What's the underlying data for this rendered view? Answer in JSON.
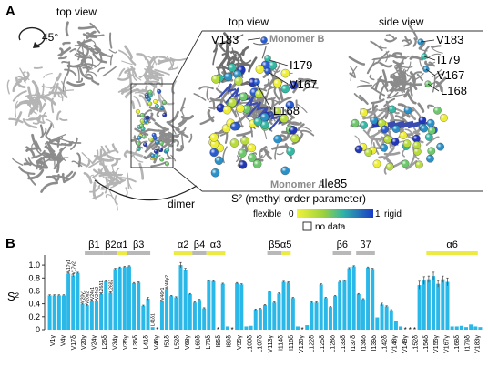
{
  "panel_a": {
    "letter": "A",
    "left_title": "top view",
    "rotation": "45°",
    "dimer_label": "dimer",
    "zoom_top_title": "top view",
    "zoom_side_title": "side view",
    "monomer_b": "Monomer B",
    "monomer_a": "Monomer A",
    "ile_label": "Ile85",
    "top_residues": [
      "V183",
      "I179",
      "V167",
      "L168"
    ],
    "side_residues": [
      "V183",
      "I179",
      "V167",
      "L168"
    ],
    "legend_title": "S² (methyl order parameter)",
    "legend_flexible": "flexible",
    "legend_zero": "0",
    "legend_one": "1",
    "legend_rigid": "rigid",
    "legend_nodata": "no data",
    "colors": {
      "ribbon": "#9a9a9a",
      "low": "#e8e830",
      "mid": "#40b8a0",
      "high": "#2040c0"
    }
  },
  "chart_data": {
    "type": "bar",
    "letter": "B",
    "ylabel": "S²",
    "ylim": [
      0,
      1.1
    ],
    "yticks": [
      "0",
      "0.2",
      "0.4",
      "0.6",
      "0.8",
      "1.0"
    ],
    "bar_color": "#2ab8e8",
    "nodata_marker": "*",
    "secondary_structure": [
      {
        "label": "β1",
        "kind": "beta",
        "from": 8,
        "to": 11
      },
      {
        "label": "β2",
        "kind": "beta",
        "from": 12,
        "to": 14
      },
      {
        "label": "α1",
        "kind": "alpha",
        "from": 15,
        "to": 16
      },
      {
        "label": "β3",
        "kind": "beta",
        "from": 17,
        "to": 21
      },
      {
        "label": "α2",
        "kind": "alpha",
        "from": 27,
        "to": 30
      },
      {
        "label": "β4",
        "kind": "beta",
        "from": 31,
        "to": 33
      },
      {
        "label": "α3",
        "kind": "alpha",
        "from": 34,
        "to": 37
      },
      {
        "label": "β5",
        "kind": "beta",
        "from": 47,
        "to": 49
      },
      {
        "label": "α5",
        "kind": "alpha",
        "from": 50,
        "to": 51
      },
      {
        "label": "β6",
        "kind": "beta",
        "from": 61,
        "to": 64
      },
      {
        "label": "β7",
        "kind": "beta",
        "from": 66,
        "to": 69
      },
      {
        "label": "α6",
        "kind": "alpha",
        "from": 81,
        "to": 91
      }
    ],
    "categories": [
      "V1γ",
      "V4γ",
      "V17δ",
      "V20γ",
      "V24γ",
      "L26δ",
      "V34γ",
      "V35γ",
      "L36δ",
      "L41δ",
      "V46γ",
      "I51δ",
      "L52δ",
      "V68γ",
      "L69δ",
      "L78δ",
      "I85δ",
      "I89δ",
      "V95γ",
      "L100δ",
      "L107δ",
      "V113γ",
      "I114δ",
      "I116δ",
      "V120γ",
      "L122δ",
      "L125δ",
      "L128δ",
      "L133δ",
      "I137δ",
      "I134δ",
      "I139δ",
      "L142δ",
      "V148γ",
      "V149γ",
      "L152δ",
      "L154δ",
      "V155γ",
      "V167γ",
      "L168δ",
      "I179δ",
      "V183γ"
    ],
    "bars": [
      {
        "v": 0.53,
        "e": 0.01
      },
      {
        "v": 0.53,
        "e": 0.01
      },
      {
        "v": 0.53,
        "e": 0.01
      },
      {
        "v": 0.53,
        "e": 0.01
      },
      {
        "v": 0.87,
        "e": 0.01,
        "label": "V17γ1"
      },
      {
        "v": 0.84,
        "e": 0.02,
        "label": "V17γ2"
      },
      {
        "v": 0.88,
        "e": 0.01
      },
      {
        "v": 0.4,
        "e": 0.01,
        "label": "V20γ1"
      },
      {
        "v": 0.38,
        "e": 0.01,
        "label": "V20γ2"
      },
      {
        "v": 0.45,
        "e": 0.01,
        "label": "V24γ1"
      },
      {
        "v": 0.45,
        "e": 0.01,
        "label": "V24γ2"
      },
      {
        "v": 0.55,
        "e": 0.01,
        "label": "L26δ1"
      },
      {
        "v": 0.75,
        "e": 0.01
      },
      {
        "v": 0.57,
        "e": 0.01,
        "label": "L26δ2"
      },
      {
        "v": 0.94,
        "e": 0.01
      },
      {
        "v": 0.96,
        "e": 0.01
      },
      {
        "v": 0.97,
        "e": 0.01
      },
      {
        "v": 0.98,
        "e": 0.01
      },
      {
        "v": 0.72,
        "e": 0.01
      },
      {
        "v": 0.73,
        "e": 0.01
      },
      {
        "v": 0.37,
        "e": 0.01
      },
      {
        "v": 0.48,
        "e": 0.02
      },
      {
        "v": 0.04,
        "e": 0.0,
        "label": "L41δ1"
      },
      {
        "v": 0.0,
        "e": 0.0,
        "nodata": true,
        "label": "L41δ2"
      },
      {
        "v": 0.44,
        "e": 0.01,
        "label": "V46γ1"
      },
      {
        "v": 0.63,
        "e": 0.01,
        "label": "V46γ2"
      },
      {
        "v": 0.52,
        "e": 0.01
      },
      {
        "v": 0.5,
        "e": 0.01
      },
      {
        "v": 1.0,
        "e": 0.04
      },
      {
        "v": 0.93,
        "e": 0.02
      },
      {
        "v": 0.55,
        "e": 0.01
      },
      {
        "v": 0.42,
        "e": 0.01
      },
      {
        "v": 0.46,
        "e": 0.01
      },
      {
        "v": 0.33,
        "e": 0.01
      },
      {
        "v": 0.76,
        "e": 0.01
      },
      {
        "v": 0.75,
        "e": 0.01
      },
      {
        "v": 0.0,
        "e": 0.0,
        "nodata": true
      },
      {
        "v": 0.71,
        "e": 0.01
      },
      {
        "v": 0.05,
        "e": 0.0
      },
      {
        "v": 0.0,
        "e": 0.0,
        "nodata": true
      },
      {
        "v": 0.72,
        "e": 0.01
      },
      {
        "v": 0.7,
        "e": 0.01
      },
      {
        "v": 0.05,
        "e": 0.0
      },
      {
        "v": 0.06,
        "e": 0.0
      },
      {
        "v": 0.31,
        "e": 0.01
      },
      {
        "v": 0.32,
        "e": 0.01
      },
      {
        "v": 0.38,
        "e": 0.01
      },
      {
        "v": 0.59,
        "e": 0.01
      },
      {
        "v": 0.42,
        "e": 0.01
      },
      {
        "v": 0.56,
        "e": 0.01
      },
      {
        "v": 0.74,
        "e": 0.01
      },
      {
        "v": 0.73,
        "e": 0.01
      },
      {
        "v": 0.49,
        "e": 0.01
      },
      {
        "v": 0.05,
        "e": 0.0
      },
      {
        "v": 0.0,
        "e": 0.0,
        "nodata": true
      },
      {
        "v": 0.07,
        "e": 0.0
      },
      {
        "v": 0.42,
        "e": 0.01
      },
      {
        "v": 0.42,
        "e": 0.01
      },
      {
        "v": 0.7,
        "e": 0.01
      },
      {
        "v": 0.49,
        "e": 0.01
      },
      {
        "v": 0.35,
        "e": 0.01
      },
      {
        "v": 0.52,
        "e": 0.01
      },
      {
        "v": 0.74,
        "e": 0.01
      },
      {
        "v": 0.76,
        "e": 0.01
      },
      {
        "v": 0.95,
        "e": 0.01
      },
      {
        "v": 0.98,
        "e": 0.01
      },
      {
        "v": 0.55,
        "e": 0.01
      },
      {
        "v": 0.47,
        "e": 0.01
      },
      {
        "v": 0.96,
        "e": 0.01
      },
      {
        "v": 0.94,
        "e": 0.01
      },
      {
        "v": 0.19,
        "e": 0.0
      },
      {
        "v": 0.39,
        "e": 0.02
      },
      {
        "v": 0.36,
        "e": 0.01
      },
      {
        "v": 0.3,
        "e": 0.01
      },
      {
        "v": 0.14,
        "e": 0.0
      },
      {
        "v": 0.05,
        "e": 0.0
      },
      {
        "v": 0.0,
        "e": 0.0,
        "nodata": true
      },
      {
        "v": 0.0,
        "e": 0.0,
        "nodata": true
      },
      {
        "v": 0.0,
        "e": 0.0,
        "nodata": true
      },
      {
        "v": 0.69,
        "e": 0.06
      },
      {
        "v": 0.76,
        "e": 0.06
      },
      {
        "v": 0.78,
        "e": 0.05
      },
      {
        "v": 0.83,
        "e": 0.06
      },
      {
        "v": 0.71,
        "e": 0.05
      },
      {
        "v": 0.78,
        "e": 0.05
      },
      {
        "v": 0.74,
        "e": 0.06
      },
      {
        "v": 0.05,
        "e": 0.0
      },
      {
        "v": 0.05,
        "e": 0.0
      },
      {
        "v": 0.06,
        "e": 0.0
      },
      {
        "v": 0.04,
        "e": 0.0
      },
      {
        "v": 0.08,
        "e": 0.0
      },
      {
        "v": 0.05,
        "e": 0.0
      },
      {
        "v": 0.04,
        "e": 0.0
      }
    ]
  }
}
